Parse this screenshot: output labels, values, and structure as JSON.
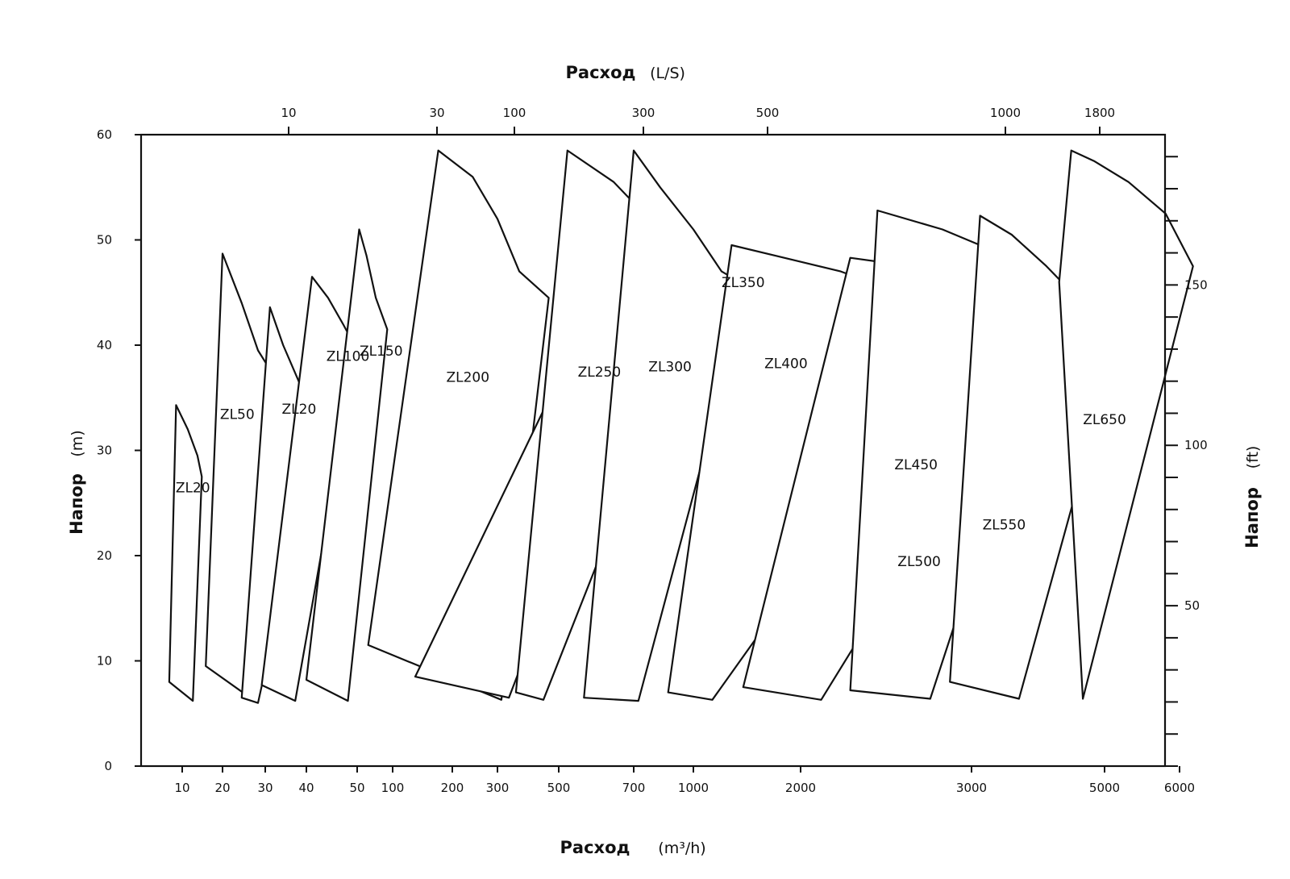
{
  "chart_data": {
    "type": "area",
    "title": "",
    "x_bottom": {
      "label": "Расход",
      "unit": "(m³/h)",
      "scale": "log",
      "ticks": [
        10,
        20,
        30,
        40,
        50,
        100,
        200,
        300,
        500,
        700,
        1000,
        2000,
        3000,
        5000,
        6000
      ]
    },
    "x_top": {
      "label": "Расход",
      "unit": "(L/S)",
      "scale": "log",
      "ticks": [
        10,
        30,
        100,
        300,
        500,
        1000,
        1800
      ]
    },
    "y_left": {
      "label": "Напор",
      "unit": "(m)",
      "range": [
        0,
        60
      ],
      "ticks": [
        0,
        10,
        20,
        30,
        40,
        50,
        60
      ]
    },
    "y_right": {
      "label": "Напор",
      "unit": "(ft)",
      "ticks": [
        50,
        100,
        150
      ]
    },
    "series": [
      {
        "name": "ZL20",
        "label_at": [
          12,
          26
        ],
        "outline": [
          [
            8,
            8
          ],
          [
            9,
            34.3
          ],
          [
            11,
            32
          ],
          [
            13,
            29.5
          ],
          [
            14,
            27.5
          ],
          [
            12,
            6.2
          ]
        ]
      },
      {
        "name": "ZL50",
        "label_at": [
          23,
          33
        ],
        "outline": [
          [
            15,
            9.5
          ],
          [
            20,
            48.7
          ],
          [
            24,
            44
          ],
          [
            28,
            39.5
          ],
          [
            32,
            37
          ],
          [
            26,
            6.5
          ]
        ]
      },
      {
        "name": "ZL20",
        "label_at": [
          38,
          33.5
        ],
        "outline": [
          [
            24,
            6.5
          ],
          [
            31,
            43.6
          ],
          [
            34,
            40
          ],
          [
            38,
            36.5
          ],
          [
            43,
            34
          ],
          [
            28,
            6
          ]
        ]
      },
      {
        "name": "ZL100",
        "label_at": [
          48,
          38.5
        ],
        "outline": [
          [
            29,
            7.7
          ],
          [
            41,
            46.5
          ],
          [
            44,
            44.5
          ],
          [
            47,
            42
          ],
          [
            50,
            39.5
          ],
          [
            37,
            6.2
          ]
        ]
      },
      {
        "name": "ZL150",
        "label_at": [
          80,
          39
        ],
        "outline": [
          [
            40,
            8.2
          ],
          [
            52,
            51
          ],
          [
            60,
            48.5
          ],
          [
            72,
            44.5
          ],
          [
            90,
            41.5
          ],
          [
            48,
            6.2
          ]
        ]
      },
      {
        "name": "ZL200",
        "label_at": [
          230,
          36.5
        ],
        "outline": [
          [
            62,
            11.5
          ],
          [
            170,
            58.5
          ],
          [
            240,
            56
          ],
          [
            300,
            52
          ],
          [
            360,
            47
          ],
          [
            460,
            44.5
          ],
          [
            310,
            6.3
          ]
        ]
      },
      {
        "name": "ZL250",
        "label_at": [
          600,
          37
        ],
        "outline": [
          [
            130,
            8.5
          ],
          [
            550,
            41
          ],
          [
            640,
            38.5
          ],
          [
            700,
            37.5
          ],
          [
            330,
            6.5
          ]
        ]
      },
      {
        "name": "ZL300",
        "label_at": [
          870,
          37.5
        ],
        "outline": [
          [
            350,
            7
          ],
          [
            520,
            58.5
          ],
          [
            640,
            55.5
          ],
          [
            790,
            51.5
          ],
          [
            940,
            48
          ],
          [
            1100,
            46
          ],
          [
            440,
            6.3
          ]
        ]
      },
      {
        "name": "ZL350",
        "label_at": [
          1380,
          45.5
        ],
        "outline": [
          [
            560,
            6.5
          ],
          [
            700,
            58.5
          ],
          [
            820,
            55
          ],
          [
            1000,
            51
          ],
          [
            1200,
            47
          ],
          [
            1430,
            45.5
          ],
          [
            720,
            6.2
          ]
        ]
      },
      {
        "name": "ZL400",
        "label_at": [
          1820,
          37.8
        ],
        "outline": [
          [
            860,
            7
          ],
          [
            1280,
            49.5
          ],
          [
            1700,
            48.5
          ],
          [
            2200,
            47
          ],
          [
            2700,
            44
          ],
          [
            3100,
            42
          ],
          [
            1130,
            6.3
          ]
        ]
      },
      {
        "name": "ZL450",
        "label_at": [
          2630,
          28.2
        ],
        "outline": [
          [
            1380,
            7.5
          ],
          [
            2250,
            48.3
          ],
          [
            2600,
            47.5
          ],
          [
            3000,
            45.5
          ],
          [
            3400,
            43
          ],
          [
            3900,
            40
          ],
          [
            2100,
            6.3
          ]
        ]
      },
      {
        "name": "ZL500",
        "label_at": [
          2650,
          19
        ],
        "outline": [
          [
            2250,
            7.2
          ],
          [
            2400,
            52.8
          ],
          [
            2800,
            51
          ],
          [
            3100,
            49.5
          ],
          [
            3500,
            47.5
          ],
          [
            4200,
            43.8
          ],
          [
            2720,
            6.4
          ]
        ]
      },
      {
        "name": "ZL550",
        "label_at": [
          3400,
          22.5
        ],
        "outline": [
          [
            2850,
            8
          ],
          [
            3100,
            52.3
          ],
          [
            3500,
            50.5
          ],
          [
            4000,
            47.5
          ],
          [
            4500,
            44.5
          ],
          [
            5200,
            41.5
          ],
          [
            3600,
            6.4
          ]
        ]
      },
      {
        "name": "ZL650",
        "label_at": [
          5000,
          32.5
        ],
        "outline": [
          [
            4200,
            46
          ],
          [
            4400,
            58.5
          ],
          [
            4800,
            57.5
          ],
          [
            5300,
            55.5
          ],
          [
            5800,
            52.5
          ],
          [
            6200,
            47.5
          ],
          [
            4600,
            6.4
          ]
        ]
      }
    ]
  }
}
